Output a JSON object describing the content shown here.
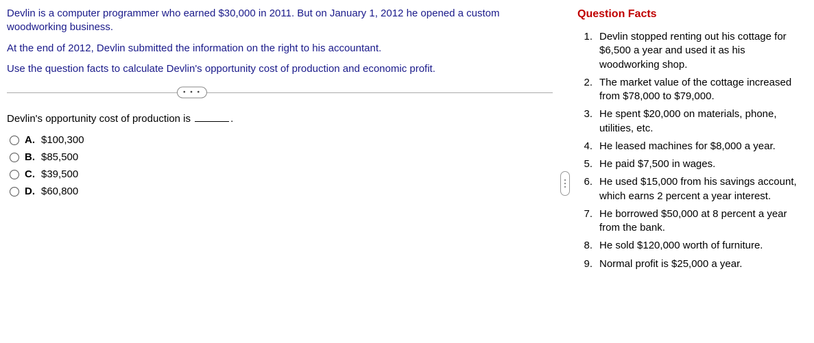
{
  "left": {
    "paragraphs": [
      "Devlin is a computer programmer who earned $30,000 in 2011. But on January 1, 2012 he opened a custom  woodworking business.",
      "At the end of 2012, Devlin submitted the information on the right to his accountant.",
      "Use the question facts to calculate Devlin's opportunity cost of production and economic profit."
    ],
    "divider_label": "• • •",
    "prompt": "Devlin's opportunity cost of production is ",
    "prompt_suffix": ".",
    "options": [
      {
        "letter": "A.",
        "text": "$100,300"
      },
      {
        "letter": "B.",
        "text": "$85,500"
      },
      {
        "letter": "C.",
        "text": "$39,500"
      },
      {
        "letter": "D.",
        "text": "$60,800"
      }
    ]
  },
  "right": {
    "title": "Question Facts",
    "facts": [
      {
        "n": "1.",
        "t": "Devlin stopped renting out his cottage for $6,500 a year and used it as his woodworking shop."
      },
      {
        "n": "2.",
        "t": "The market value of the cottage increased from $78,000 to $79,000."
      },
      {
        "n": "3.",
        "t": "He spent $20,000 on materials, phone, utilities, etc."
      },
      {
        "n": "4.",
        "t": "He leased machines for $8,000 a year."
      },
      {
        "n": "5.",
        "t": "He paid $7,500 in wages."
      },
      {
        "n": "6.",
        "t": "He used $15,000 from his savings account, which earns 2 percent a year interest."
      },
      {
        "n": "7.",
        "t": "He borrowed $50,000 at 8 percent a year from the bank."
      },
      {
        "n": "8.",
        "t": "He sold $120,000 worth of furniture."
      },
      {
        "n": "9.",
        "t": "Normal profit is $25,000 a year."
      }
    ]
  },
  "colors": {
    "question_text": "#1a1a8a",
    "facts_title": "#c00000"
  }
}
